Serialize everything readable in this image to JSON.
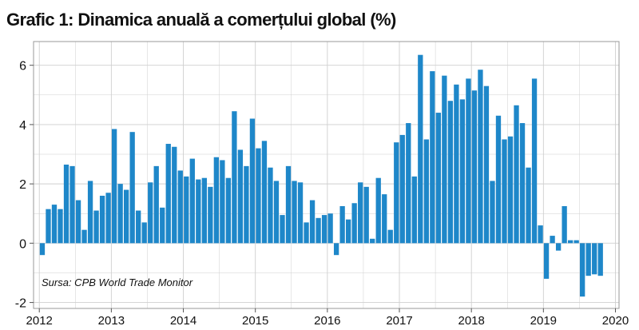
{
  "title": "Grafic 1: Dinamica anuală a comerțului global (%)",
  "source_note": "Sursa: CPB World Trade Monitor",
  "colors": {
    "bar": "#1e87c9",
    "grid": "#cfcfcf",
    "frame": "#999999"
  },
  "chart_data": {
    "type": "bar",
    "title": "Grafic 1: Dinamica anuală a comerțului global (%)",
    "xlabel": "",
    "ylabel": "",
    "ylim": [
      -2.2,
      6.8
    ],
    "xlim": [
      2011.92,
      2020.05
    ],
    "x_ticks": [
      2012,
      2013,
      2014,
      2015,
      2016,
      2017,
      2018,
      2019,
      2020
    ],
    "y_ticks": [
      -2,
      0,
      2,
      4,
      6
    ],
    "grid": true,
    "start": {
      "year": 2012,
      "month": 1
    },
    "values": [
      -0.4,
      1.15,
      1.3,
      1.15,
      2.65,
      2.6,
      1.45,
      0.45,
      2.1,
      1.1,
      1.6,
      1.7,
      3.85,
      2.0,
      1.8,
      3.75,
      1.1,
      0.7,
      2.05,
      2.6,
      1.2,
      3.35,
      3.25,
      2.45,
      2.25,
      2.85,
      2.15,
      2.2,
      1.9,
      2.9,
      2.8,
      2.2,
      4.45,
      3.15,
      2.6,
      4.2,
      3.2,
      3.45,
      2.55,
      2.1,
      0.95,
      2.6,
      2.1,
      2.05,
      0.7,
      1.45,
      0.85,
      0.95,
      1.0,
      -0.4,
      1.25,
      0.8,
      1.35,
      2.05,
      1.9,
      0.15,
      2.2,
      1.65,
      0.45,
      3.4,
      3.65,
      4.05,
      2.25,
      6.35,
      3.5,
      5.8,
      4.4,
      5.65,
      4.8,
      5.35,
      4.85,
      5.55,
      5.15,
      5.85,
      5.3,
      2.1,
      4.3,
      3.5,
      3.6,
      4.65,
      4.05,
      2.55,
      5.55,
      0.6,
      -1.2,
      0.25,
      -0.25,
      1.25,
      0.1,
      0.1,
      -1.8,
      -1.1,
      -1.05,
      -1.1
    ]
  }
}
